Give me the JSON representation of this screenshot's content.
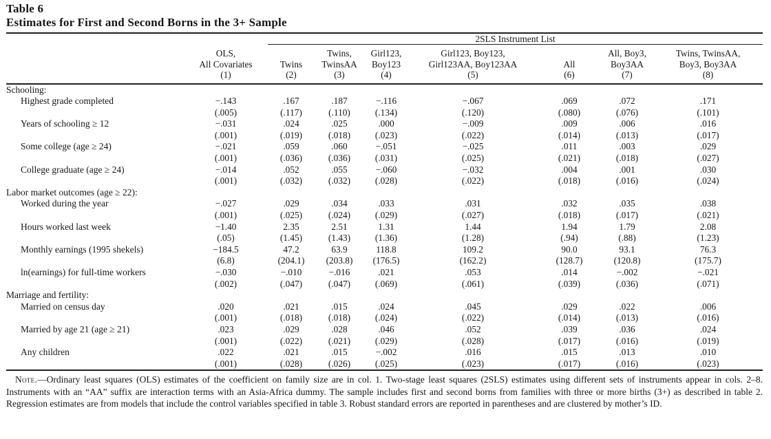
{
  "table": {
    "number": "Table 6",
    "title": "Estimates for First and Second Borns in the 3+ Sample",
    "spanner_label": "2SLS Instrument List",
    "columns": [
      {
        "lines": [
          "OLS,",
          "All Covariates"
        ],
        "num": "(1)"
      },
      {
        "lines": [
          "Twins"
        ],
        "num": "(2)"
      },
      {
        "lines": [
          "Twins,",
          "TwinsAA"
        ],
        "num": "(3)"
      },
      {
        "lines": [
          "Girl123,",
          "Boy123"
        ],
        "num": "(4)"
      },
      {
        "lines": [
          "Girl123, Boy123,",
          "Girl123AA, Boy123AA"
        ],
        "num": "(5)"
      },
      {
        "lines": [
          "All"
        ],
        "num": "(6)"
      },
      {
        "lines": [
          "All, Boy3,",
          "Boy3AA"
        ],
        "num": "(7)"
      },
      {
        "lines": [
          "Twins, TwinsAA,",
          "Boy3, Boy3AA"
        ],
        "num": "(8)"
      }
    ],
    "sections": [
      {
        "label": "Schooling:",
        "rows": [
          {
            "label": "Highest grade completed",
            "est": [
              "−.143",
              ".167",
              ".187",
              "−.116",
              "−.067",
              ".069",
              ".072",
              ".171"
            ],
            "se": [
              "(.005)",
              "(.117)",
              "(.110)",
              "(.134)",
              "(.120)",
              "(.080)",
              "(.076)",
              "(.101)"
            ]
          },
          {
            "label": "Years of schooling ≥ 12",
            "est": [
              "−.031",
              ".024",
              ".025",
              ".000",
              "−.009",
              ".009",
              ".006",
              ".016"
            ],
            "se": [
              "(.001)",
              "(.019)",
              "(.018)",
              "(.023)",
              "(.022)",
              "(.014)",
              "(.013)",
              "(.017)"
            ]
          },
          {
            "label": "Some college (age ≥ 24)",
            "est": [
              "−.021",
              ".059",
              ".060",
              "−.051",
              "−.025",
              ".011",
              ".003",
              ".029"
            ],
            "se": [
              "(.001)",
              "(.036)",
              "(.036)",
              "(.031)",
              "(.025)",
              "(.021)",
              "(.018)",
              "(.027)"
            ]
          },
          {
            "label": "College graduate (age ≥ 24)",
            "est": [
              "−.014",
              ".052",
              ".055",
              "−.060",
              "−.032",
              ".004",
              ".001",
              ".030"
            ],
            "se": [
              "(.001)",
              "(.032)",
              "(.032)",
              "(.028)",
              "(.022)",
              "(.018)",
              "(.016)",
              "(.024)"
            ]
          }
        ]
      },
      {
        "label": "Labor market outcomes (age ≥ 22):",
        "rows": [
          {
            "label": "Worked during the year",
            "est": [
              "−.027",
              ".029",
              ".034",
              ".033",
              ".031",
              ".032",
              ".035",
              ".038"
            ],
            "se": [
              "(.001)",
              "(.025)",
              "(.024)",
              "(.029)",
              "(.027)",
              "(.018)",
              "(.017)",
              "(.021)"
            ]
          },
          {
            "label": "Hours worked last week",
            "est": [
              "−1.40",
              "2.35",
              "2.51",
              "1.31",
              "1.44",
              "1.94",
              "1.79",
              "2.08"
            ],
            "se": [
              "(.05)",
              "(1.45)",
              "(1.43)",
              "(1.36)",
              "(1.28)",
              "(.94)",
              "(.88)",
              "(1.23)"
            ]
          },
          {
            "label": "Monthly earnings (1995 shekels)",
            "est": [
              "−184.5",
              "47.2",
              "63.9",
              "118.8",
              "109.2",
              "90.0",
              "93.1",
              "76.3"
            ],
            "se": [
              "(6.8)",
              "(204.1)",
              "(203.8)",
              "(176.5)",
              "(162.2)",
              "(128.7)",
              "(120.8)",
              "(175.7)"
            ]
          },
          {
            "label": "ln(earnings) for full-time workers",
            "est": [
              "−.030",
              "−.010",
              "−.016",
              ".021",
              ".053",
              ".014",
              "−.002",
              "−.021"
            ],
            "se": [
              "(.002)",
              "(.047)",
              "(.047)",
              "(.069)",
              "(.061)",
              "(.039)",
              "(.036)",
              "(.071)"
            ]
          }
        ]
      },
      {
        "label": "Marriage and fertility:",
        "rows": [
          {
            "label": "Married on census day",
            "est": [
              ".020",
              ".021",
              ".015",
              ".024",
              ".045",
              ".029",
              ".022",
              ".006"
            ],
            "se": [
              "(.001)",
              "(.018)",
              "(.018)",
              "(.024)",
              "(.022)",
              "(.014)",
              "(.013)",
              "(.016)"
            ]
          },
          {
            "label": "Married by age 21 (age ≥ 21)",
            "est": [
              ".023",
              ".029",
              ".028",
              ".046",
              ".052",
              ".039",
              ".036",
              ".024"
            ],
            "se": [
              "(.001)",
              "(.022)",
              "(.021)",
              "(.029)",
              "(.028)",
              "(.017)",
              "(.016)",
              "(.019)"
            ]
          },
          {
            "label": "Any children",
            "est": [
              ".022",
              ".021",
              ".015",
              "−.002",
              ".016",
              ".015",
              ".013",
              ".010"
            ],
            "se": [
              "(.001)",
              "(.028)",
              "(.026)",
              "(.025)",
              "(.023)",
              "(.017)",
              "(.016)",
              "(.023)"
            ]
          }
        ]
      }
    ],
    "note_label": "Note.",
    "note_text": "—Ordinary least squares (OLS) estimates of the coefficient on family size are in col. 1. Two-stage least squares (2SLS) estimates using different sets of instruments appear in cols. 2–8. Instruments with an “AA” suffix are interaction terms with an Asia-Africa dummy. The sample includes first and second borns from families with three or more births (3+) as described in table 2. Regression estimates are from models that include the control variables specified in table 3. Robust standard errors are reported in parentheses and are clustered by mother’s ID."
  }
}
